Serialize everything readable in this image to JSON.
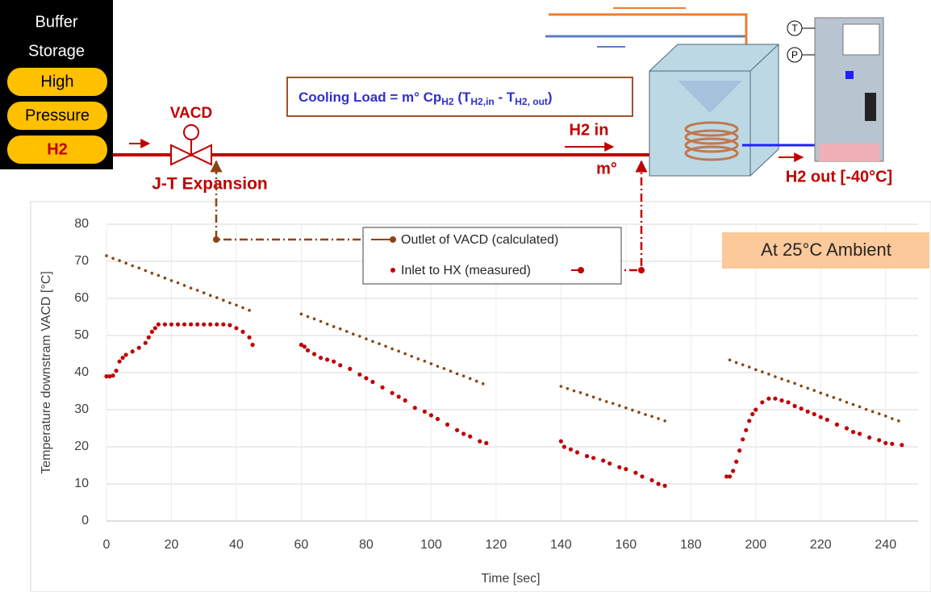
{
  "chart_data": {
    "type": "scatter",
    "x_label": "Time [sec]",
    "y_label": "Temperature downstram VACD [°C]",
    "annotation": "At 25°C Ambient",
    "xlim": [
      0,
      250
    ],
    "ylim": [
      0,
      80
    ],
    "xticks": [
      0,
      20,
      40,
      60,
      80,
      100,
      120,
      140,
      160,
      180,
      200,
      220,
      240
    ],
    "yticks": [
      0,
      10,
      20,
      30,
      40,
      50,
      60,
      70,
      80
    ],
    "grid": true,
    "series": [
      {
        "name": "Outlet of VACD (calculated)",
        "color": "#8b4513",
        "x": [
          0,
          2,
          4,
          6,
          8,
          10,
          12,
          14,
          16,
          18,
          20,
          22,
          24,
          26,
          28,
          30,
          32,
          34,
          36,
          38,
          40,
          42,
          44,
          60,
          62,
          64,
          66,
          68,
          70,
          72,
          74,
          76,
          78,
          80,
          82,
          84,
          86,
          88,
          90,
          92,
          94,
          96,
          98,
          100,
          102,
          104,
          106,
          108,
          110,
          112,
          114,
          116,
          140,
          142,
          144,
          146,
          148,
          150,
          152,
          154,
          156,
          158,
          160,
          162,
          164,
          166,
          168,
          170,
          172,
          192,
          194,
          196,
          198,
          200,
          202,
          204,
          206,
          208,
          210,
          212,
          214,
          216,
          218,
          220,
          222,
          224,
          226,
          228,
          230,
          232,
          234,
          236,
          238,
          240,
          242,
          244
        ],
        "values": [
          71.5,
          70.8,
          70.2,
          69.5,
          68.8,
          68.2,
          67.5,
          66.8,
          66.2,
          65.5,
          64.8,
          64.2,
          63.5,
          62.8,
          62.2,
          61.5,
          60.8,
          60.2,
          59.5,
          58.8,
          58.2,
          57.5,
          56.8,
          55.8,
          55.1,
          54.5,
          53.8,
          53.1,
          52.4,
          51.8,
          51.1,
          50.4,
          49.8,
          49.1,
          48.4,
          47.8,
          47.1,
          46.4,
          45.8,
          45.1,
          44.4,
          43.7,
          43.1,
          42.4,
          41.7,
          41.1,
          40.4,
          39.7,
          39.1,
          38.4,
          37.7,
          37.0,
          36.3,
          35.7,
          35.1,
          34.6,
          34.0,
          33.4,
          32.8,
          32.2,
          31.7,
          31.1,
          30.5,
          29.9,
          29.3,
          28.7,
          28.2,
          27.6,
          27.0,
          43.4,
          42.7,
          42.1,
          41.5,
          40.8,
          40.2,
          39.6,
          38.9,
          38.3,
          37.7,
          37.1,
          36.4,
          35.8,
          35.2,
          34.5,
          33.9,
          33.3,
          32.7,
          32.0,
          31.4,
          30.8,
          30.1,
          29.5,
          28.9,
          28.3,
          27.6,
          27.0
        ]
      },
      {
        "name": "Inlet to HX (measured)",
        "color": "#c00000",
        "x": [
          0,
          1,
          2,
          3,
          4,
          5,
          6,
          8,
          10,
          12,
          13,
          14,
          15,
          16,
          18,
          20,
          22,
          24,
          26,
          28,
          30,
          32,
          34,
          36,
          38,
          40,
          42,
          44,
          45,
          60,
          61,
          62,
          64,
          66,
          68,
          70,
          72,
          75,
          78,
          80,
          82,
          85,
          88,
          90,
          92,
          95,
          98,
          100,
          102,
          105,
          108,
          110,
          112,
          115,
          117,
          140,
          141,
          143,
          145,
          148,
          150,
          153,
          155,
          158,
          160,
          163,
          165,
          168,
          170,
          172,
          191,
          192,
          193,
          194,
          195,
          196,
          197,
          198,
          199,
          200,
          202,
          204,
          206,
          208,
          210,
          212,
          214,
          216,
          218,
          220,
          222,
          225,
          228,
          230,
          232,
          235,
          238,
          240,
          242,
          245
        ],
        "values": [
          39,
          39,
          39.2,
          40.5,
          43,
          44,
          44.8,
          45.7,
          46.7,
          48,
          49.5,
          51,
          52,
          53,
          53,
          53,
          53,
          53,
          53,
          53,
          53,
          53,
          53,
          53,
          52.8,
          52,
          51,
          49.5,
          47.5,
          47.5,
          47,
          46,
          45,
          44,
          43.5,
          43,
          42,
          41,
          39.5,
          38.5,
          37.5,
          36,
          34.5,
          33.5,
          32.5,
          30.5,
          29.5,
          28.5,
          27.5,
          26,
          24.5,
          23.5,
          22.8,
          21.5,
          21,
          21.5,
          20,
          19.3,
          18.5,
          17.5,
          17,
          16.3,
          15.5,
          14.5,
          14,
          13,
          12,
          11,
          10,
          9.5,
          12,
          12,
          13.5,
          16,
          19,
          22,
          24.5,
          27,
          28.8,
          30,
          32,
          33,
          33,
          32.5,
          32,
          31,
          30.3,
          29.5,
          28.8,
          28,
          27.3,
          26,
          25,
          24,
          23.5,
          22.5,
          21.8,
          21,
          20.8,
          20.5
        ]
      }
    ]
  },
  "diagram": {
    "storage": [
      "Buffer",
      "Storage"
    ],
    "pills": [
      "High",
      "Pressure",
      "H2"
    ],
    "valve": "VACD",
    "expansion": "J-T Expansion",
    "cooling_load": [
      "Cooling Load = m° Cp",
      "H2",
      " (T",
      "H2,in",
      " - T",
      "H2, out",
      ")"
    ],
    "h2_in": "H2 in",
    "mass_flow": "m°",
    "h2_out": "H2 out [-40°C]",
    "sensors": [
      "T",
      "P"
    ]
  }
}
